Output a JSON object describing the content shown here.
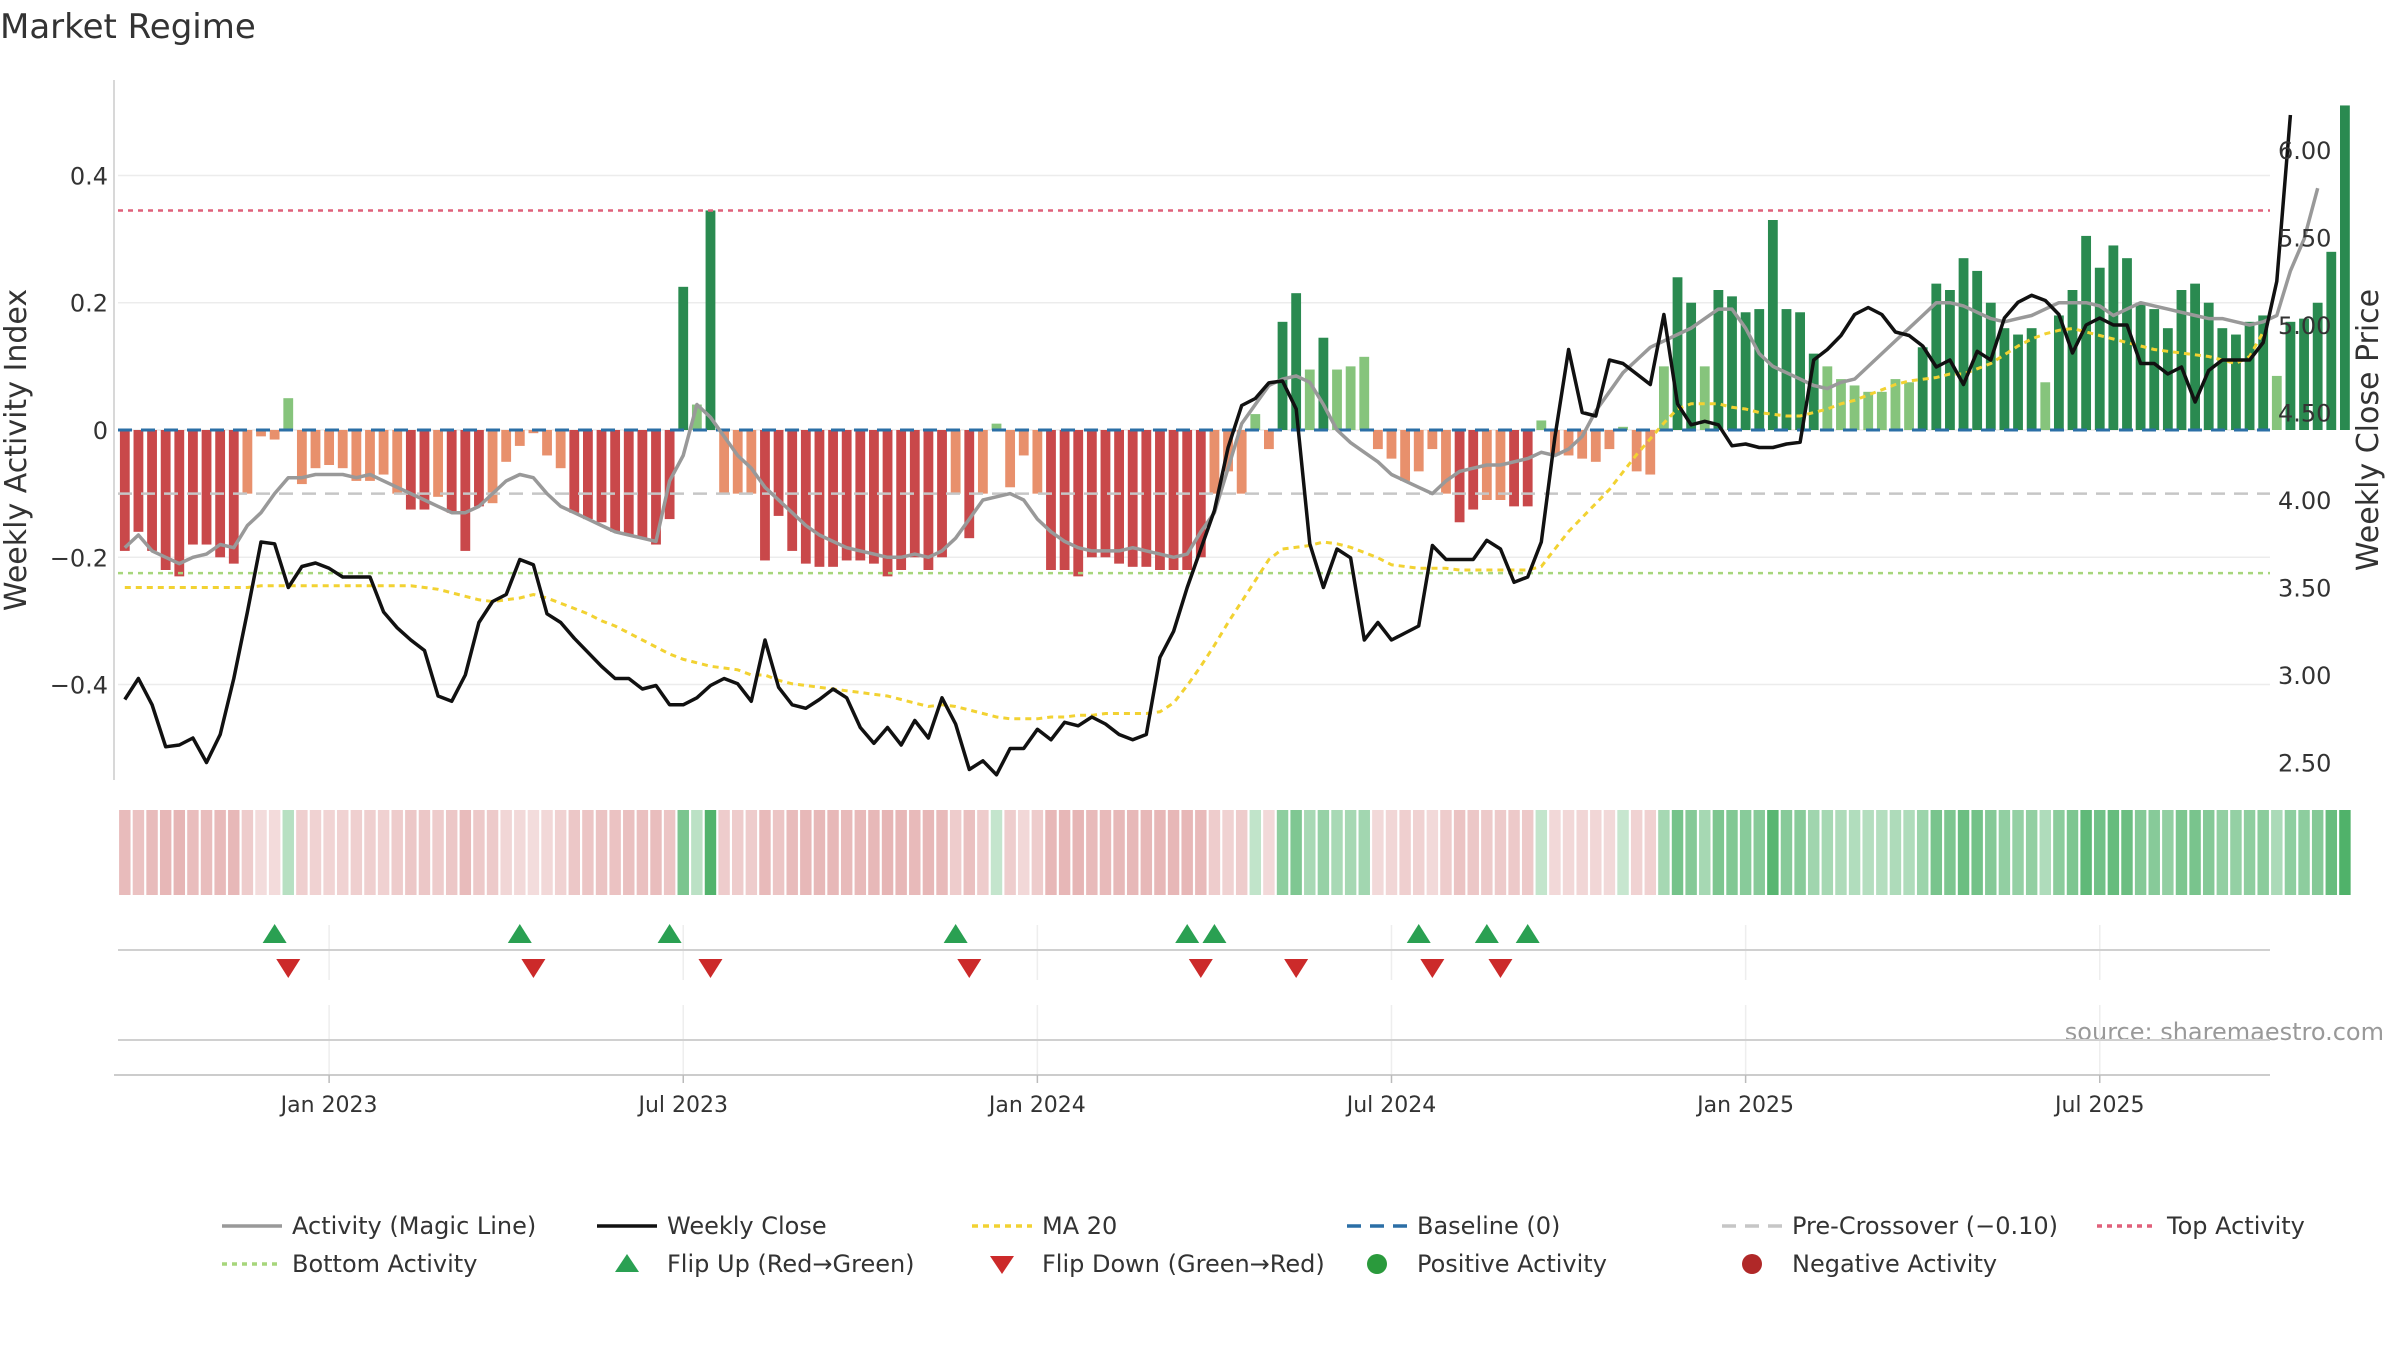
{
  "chart_data": {
    "type": "bar",
    "title": "Market Regime",
    "source": "source: sharemaestro.com",
    "ylabel_left": "Weekly Activity Index",
    "ylabel_right": "Weekly Close Price",
    "ylim_left": [
      -0.55,
      0.55
    ],
    "ylim_right": [
      2.4,
      6.4
    ],
    "yticks_left": [
      {
        "v": 0.4,
        "label": "0.4"
      },
      {
        "v": 0.2,
        "label": "0.2"
      },
      {
        "v": 0,
        "label": "0"
      },
      {
        "v": -0.2,
        "label": "−0.2"
      },
      {
        "v": -0.4,
        "label": "−0.4"
      }
    ],
    "yticks_right": [
      {
        "v": 6.0,
        "label": "6.00"
      },
      {
        "v": 5.5,
        "label": "5.50"
      },
      {
        "v": 5.0,
        "label": "5.00"
      },
      {
        "v": 4.5,
        "label": "4.50"
      },
      {
        "v": 4.0,
        "label": "4.00"
      },
      {
        "v": 3.5,
        "label": "3.50"
      },
      {
        "v": 3.0,
        "label": "3.00"
      },
      {
        "v": 2.5,
        "label": "2.50"
      }
    ],
    "x_ticks": [
      {
        "week": 15,
        "label": "Jan 2023"
      },
      {
        "week": 41,
        "label": "Jul 2023"
      },
      {
        "week": 67,
        "label": "Jan 2024"
      },
      {
        "week": 93,
        "label": "Jul 2024"
      },
      {
        "week": 119,
        "label": "Jan 2025"
      },
      {
        "week": 145,
        "label": "Jul 2025"
      }
    ],
    "weeks": 158,
    "reference_lines": {
      "top_activity": 0.345,
      "bottom_activity": -0.225,
      "pre_crossover": -0.1,
      "baseline": 0
    },
    "colors": {
      "strong_red": "#c9484a",
      "light_red": "#e8906c",
      "strong_green": "#2a8a50",
      "light_green": "#86c47c",
      "close": "#111111",
      "magic_line": "#999999",
      "ma20": "#f2d232",
      "baseline": "#2b6fa6",
      "pre_crossover": "#c6c6c6",
      "top_activity": "#e0607a",
      "bottom_activity": "#a7d67c",
      "flip_up": "#2aa052",
      "flip_down": "#cc2a2a",
      "positive_dot": "#2a9a3c",
      "negative_dot": "#b02828"
    },
    "series": [
      {
        "name": "Activity (Magic Line)",
        "values": [
          -0.185,
          -0.165,
          -0.19,
          -0.2,
          -0.21,
          -0.2,
          -0.195,
          -0.18,
          -0.185,
          -0.15,
          -0.13,
          -0.1,
          -0.075,
          -0.075,
          -0.07,
          -0.07,
          -0.07,
          -0.075,
          -0.07,
          -0.08,
          -0.09,
          -0.1,
          -0.11,
          -0.12,
          -0.13,
          -0.13,
          -0.12,
          -0.1,
          -0.08,
          -0.07,
          -0.075,
          -0.1,
          -0.12,
          -0.13,
          -0.14,
          -0.15,
          -0.16,
          -0.165,
          -0.17,
          -0.175,
          -0.08,
          -0.04,
          0.04,
          0.02,
          -0.01,
          -0.04,
          -0.06,
          -0.09,
          -0.11,
          -0.13,
          -0.15,
          -0.165,
          -0.175,
          -0.185,
          -0.19,
          -0.195,
          -0.2,
          -0.2,
          -0.195,
          -0.2,
          -0.19,
          -0.17,
          -0.14,
          -0.11,
          -0.105,
          -0.1,
          -0.11,
          -0.14,
          -0.16,
          -0.175,
          -0.185,
          -0.19,
          -0.19,
          -0.19,
          -0.185,
          -0.19,
          -0.195,
          -0.2,
          -0.195,
          -0.16,
          -0.13,
          -0.06,
          0.01,
          0.04,
          0.07,
          0.08,
          0.085,
          0.075,
          0.04,
          0,
          -0.02,
          -0.035,
          -0.05,
          -0.07,
          -0.08,
          -0.09,
          -0.1,
          -0.08,
          -0.065,
          -0.06,
          -0.055,
          -0.055,
          -0.05,
          -0.045,
          -0.035,
          -0.04,
          -0.03,
          -0.01,
          0.03,
          0.06,
          0.09,
          0.11,
          0.13,
          0.14,
          0.15,
          0.16,
          0.175,
          0.19,
          0.19,
          0.16,
          0.12,
          0.1,
          0.09,
          0.08,
          0.07,
          0.065,
          0.075,
          0.08,
          0.1,
          0.12,
          0.14,
          0.16,
          0.18,
          0.2,
          0.2,
          0.195,
          0.185,
          0.175,
          0.17,
          0.175,
          0.18,
          0.19,
          0.2,
          0.2,
          0.2,
          0.195,
          0.18,
          0.19,
          0.2,
          0.195,
          0.19,
          0.185,
          0.18,
          0.175,
          0.175,
          0.17,
          0.165,
          0.17,
          0.18,
          0.25,
          0.3,
          0.38
        ]
      },
      {
        "name": "Weekly Close",
        "values": [
          2.86,
          2.98,
          2.83,
          2.59,
          2.6,
          2.64,
          2.5,
          2.66,
          2.98,
          3.36,
          3.76,
          3.75,
          3.5,
          3.62,
          3.64,
          3.61,
          3.56,
          3.56,
          3.56,
          3.36,
          3.27,
          3.2,
          3.14,
          2.88,
          2.85,
          3.0,
          3.3,
          3.42,
          3.46,
          3.66,
          3.63,
          3.35,
          3.3,
          3.21,
          3.13,
          3.05,
          2.98,
          2.98,
          2.92,
          2.94,
          2.83,
          2.83,
          2.87,
          2.94,
          2.98,
          2.95,
          2.85,
          3.2,
          2.93,
          2.83,
          2.81,
          2.86,
          2.92,
          2.87,
          2.7,
          2.61,
          2.7,
          2.6,
          2.74,
          2.64,
          2.87,
          2.72,
          2.46,
          2.51,
          2.43,
          2.58,
          2.58,
          2.69,
          2.63,
          2.73,
          2.71,
          2.76,
          2.72,
          2.66,
          2.63,
          2.66,
          3.1,
          3.25,
          3.5,
          3.72,
          3.94,
          4.3,
          4.54,
          4.58,
          4.67,
          4.68,
          4.52,
          3.75,
          3.5,
          3.72,
          3.67,
          3.2,
          3.3,
          3.2,
          3.24,
          3.28,
          3.74,
          3.66,
          3.66,
          3.66,
          3.77,
          3.72,
          3.53,
          3.56,
          3.76,
          4.36,
          4.86,
          4.5,
          4.48,
          4.8,
          4.78,
          4.72,
          4.66,
          5.06,
          4.55,
          4.43,
          4.45,
          4.43,
          4.31,
          4.32,
          4.3,
          4.3,
          4.32,
          4.33,
          4.8,
          4.86,
          4.94,
          5.06,
          5.1,
          5.06,
          4.96,
          4.94,
          4.88,
          4.76,
          4.8,
          4.66,
          4.85,
          4.8,
          5.04,
          5.13,
          5.17,
          5.14,
          5.06,
          4.84,
          5.0,
          5.04,
          5.0,
          5.0,
          4.78,
          4.78,
          4.72,
          4.76,
          4.56,
          4.74,
          4.8,
          4.8,
          4.8,
          4.9,
          5.25,
          6.2
        ]
      },
      {
        "name": "MA 20",
        "values": [
          3.5,
          3.5,
          3.5,
          3.5,
          3.5,
          3.5,
          3.5,
          3.5,
          3.5,
          3.5,
          3.51,
          3.51,
          3.51,
          3.51,
          3.51,
          3.51,
          3.51,
          3.51,
          3.51,
          3.51,
          3.51,
          3.51,
          3.5,
          3.49,
          3.47,
          3.45,
          3.43,
          3.42,
          3.43,
          3.44,
          3.46,
          3.44,
          3.41,
          3.38,
          3.35,
          3.31,
          3.28,
          3.24,
          3.2,
          3.16,
          3.12,
          3.09,
          3.07,
          3.05,
          3.04,
          3.03,
          3.0,
          3.0,
          2.97,
          2.95,
          2.94,
          2.93,
          2.92,
          2.91,
          2.9,
          2.89,
          2.88,
          2.86,
          2.84,
          2.82,
          2.83,
          2.82,
          2.8,
          2.78,
          2.76,
          2.75,
          2.75,
          2.75,
          2.76,
          2.76,
          2.77,
          2.77,
          2.78,
          2.78,
          2.78,
          2.78,
          2.79,
          2.84,
          2.94,
          3.05,
          3.17,
          3.3,
          3.42,
          3.54,
          3.66,
          3.72,
          3.73,
          3.74,
          3.76,
          3.75,
          3.73,
          3.7,
          3.67,
          3.63,
          3.62,
          3.61,
          3.61,
          3.61,
          3.6,
          3.6,
          3.6,
          3.6,
          3.6,
          3.6,
          3.62,
          3.72,
          3.82,
          3.9,
          3.98,
          4.06,
          4.16,
          4.26,
          4.35,
          4.44,
          4.52,
          4.55,
          4.55,
          4.55,
          4.53,
          4.52,
          4.5,
          4.49,
          4.48,
          4.48,
          4.5,
          4.52,
          4.55,
          4.57,
          4.6,
          4.63,
          4.66,
          4.68,
          4.69,
          4.7,
          4.72,
          4.72,
          4.75,
          4.78,
          4.83,
          4.88,
          4.92,
          4.95,
          4.97,
          4.98,
          4.96,
          4.94,
          4.92,
          4.9,
          4.88,
          4.86,
          4.85,
          4.84,
          4.83,
          4.82,
          4.8,
          4.78,
          4.82,
          4.96
        ]
      }
    ],
    "activity_bars": [
      -0.19,
      -0.16,
      -0.19,
      -0.22,
      -0.23,
      -0.18,
      -0.18,
      -0.2,
      -0.21,
      -0.1,
      -0.01,
      -0.015,
      0.05,
      -0.085,
      -0.06,
      -0.055,
      -0.06,
      -0.08,
      -0.08,
      -0.07,
      -0.1,
      -0.125,
      -0.125,
      -0.105,
      -0.13,
      -0.19,
      -0.12,
      -0.115,
      -0.05,
      -0.025,
      -0.005,
      -0.04,
      -0.06,
      -0.13,
      -0.14,
      -0.145,
      -0.16,
      -0.165,
      -0.17,
      -0.18,
      -0.14,
      0.225,
      0.04,
      0.345,
      -0.1,
      -0.1,
      -0.1,
      -0.205,
      -0.135,
      -0.19,
      -0.21,
      -0.215,
      -0.215,
      -0.205,
      -0.205,
      -0.21,
      -0.23,
      -0.22,
      -0.2,
      -0.22,
      -0.2,
      -0.1,
      -0.17,
      -0.1,
      0.01,
      -0.09,
      -0.04,
      -0.1,
      -0.22,
      -0.22,
      -0.23,
      -0.2,
      -0.2,
      -0.21,
      -0.215,
      -0.215,
      -0.22,
      -0.22,
      -0.22,
      -0.2,
      -0.1,
      -0.065,
      -0.1,
      0.025,
      -0.03,
      0.17,
      0.215,
      0.095,
      0.145,
      0.095,
      0.1,
      0.115,
      -0.03,
      -0.045,
      -0.08,
      -0.065,
      -0.03,
      -0.1,
      -0.145,
      -0.125,
      -0.11,
      -0.11,
      -0.12,
      -0.12,
      0.015,
      -0.04,
      -0.04,
      -0.045,
      -0.05,
      -0.03,
      0.005,
      -0.065,
      -0.07,
      0.1,
      0.24,
      0.2,
      0.1,
      0.22,
      0.21,
      0.185,
      0.19,
      0.33,
      0.19,
      0.185,
      0.12,
      0.1,
      0.08,
      0.07,
      0.06,
      0.06,
      0.08,
      0.075,
      0.13,
      0.23,
      0.22,
      0.27,
      0.25,
      0.2,
      0.16,
      0.15,
      0.16,
      0.075,
      0.18,
      0.22,
      0.305,
      0.255,
      0.29,
      0.27,
      0.2,
      0.19,
      0.16,
      0.22,
      0.23,
      0.2,
      0.16,
      0.15,
      0.17,
      0.18,
      0.085,
      0.17,
      0.175,
      0.2,
      0.28,
      0.51
    ],
    "flip_up_weeks": [
      11,
      29,
      40,
      61,
      78,
      80,
      95,
      100,
      103
    ],
    "flip_down_weeks": [
      12,
      30,
      43,
      62,
      79,
      86,
      96,
      101
    ],
    "legend": [
      {
        "label": "Activity (Magic Line)",
        "kind": "line",
        "color": "#999999",
        "dash": ""
      },
      {
        "label": "Weekly Close",
        "kind": "line",
        "color": "#111111",
        "dash": ""
      },
      {
        "label": "MA 20",
        "kind": "line",
        "color": "#f2d232",
        "dash": "6,5"
      },
      {
        "label": "Baseline (0)",
        "kind": "line",
        "color": "#2b6fa6",
        "dash": "14,9"
      },
      {
        "label": "Pre-Crossover (−0.10)",
        "kind": "line",
        "color": "#c6c6c6",
        "dash": "14,9"
      },
      {
        "label": "Top Activity",
        "kind": "line",
        "color": "#e0607a",
        "dash": "5,5"
      },
      {
        "label": "Bottom Activity",
        "kind": "line",
        "color": "#a7d67c",
        "dash": "5,5"
      },
      {
        "label": "Flip Up (Red→Green)",
        "kind": "tri-up",
        "color": "#2aa052",
        "dash": ""
      },
      {
        "label": "Flip Down (Green→Red)",
        "kind": "tri-down",
        "color": "#cc2a2a",
        "dash": ""
      },
      {
        "label": "Positive Activity",
        "kind": "dot",
        "color": "#2a9a3c",
        "dash": ""
      },
      {
        "label": "Negative Activity",
        "kind": "dot",
        "color": "#b02828",
        "dash": ""
      }
    ]
  }
}
